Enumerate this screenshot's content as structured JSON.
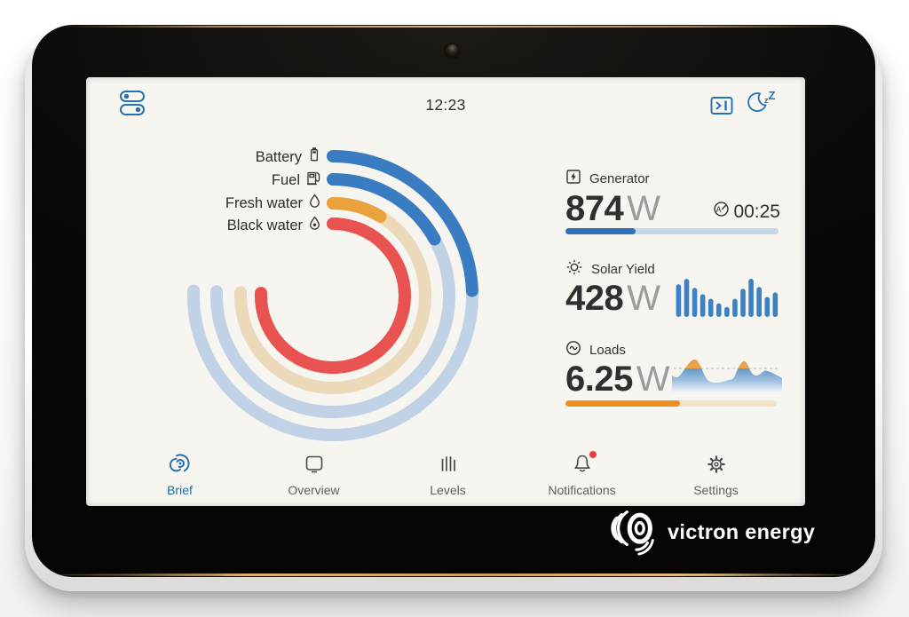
{
  "status_bar": {
    "time": "12:23",
    "icons": [
      "toggles-icon",
      "remote-console-icon",
      "display-sleep-icon"
    ],
    "accent_color": "#2471b5"
  },
  "chart_data": [
    {
      "type": "gauge-arcs",
      "name": "tank-gauge",
      "sweep_deg": 272,
      "stroke": 14,
      "rings": [
        {
          "label": "Battery",
          "icon": "battery-icon",
          "percent": 32,
          "fill_deg": 88,
          "fill": "#3a7cc2",
          "track": "#c2d2e6",
          "radius": 157
        },
        {
          "label": "Fuel",
          "icon": "fuel-pump-icon",
          "percent": 22,
          "fill_deg": 61,
          "fill": "#3a7cc2",
          "track": "#c2d2e6",
          "radius": 131
        },
        {
          "label": "Fresh water",
          "icon": "droplet-icon",
          "percent": 11,
          "fill_deg": 31,
          "fill": "#eaa23c",
          "track": "#ecd9ba",
          "radius": 104
        },
        {
          "label": "Black water",
          "icon": "droplet-dark-icon",
          "percent": 100,
          "fill_deg": 272,
          "fill": "#e85250",
          "track": "#f2c3bd",
          "radius": 81
        }
      ]
    },
    {
      "type": "bar",
      "name": "solar-history",
      "values": [
        36,
        42,
        32,
        25,
        20,
        15,
        11,
        20,
        31,
        42,
        33,
        22,
        27
      ],
      "ymax": 43,
      "color": "#3d80c4"
    },
    {
      "type": "area",
      "name": "loads-history",
      "x": [
        0,
        0.05,
        0.12,
        0.2,
        0.25,
        0.31,
        0.37,
        0.45,
        0.52,
        0.56,
        0.6,
        0.65,
        0.68,
        0.72,
        0.76,
        0.8,
        0.84,
        0.88,
        0.94,
        1
      ],
      "v": [
        0.45,
        0.33,
        0.67,
        0.95,
        0.8,
        0.33,
        0.24,
        0.26,
        0.33,
        0.35,
        0.67,
        0.88,
        0.8,
        0.52,
        0.43,
        0.48,
        0.6,
        0.57,
        0.48,
        0.38
      ],
      "threshold": 0.65,
      "area_top_color": "#3e77ae",
      "area_bottom_color": "#e9f0f7",
      "above_color": "#eda045",
      "threshold_color": "#a9a294"
    }
  ],
  "panels": {
    "generator": {
      "label": "Generator",
      "icon": "generator-icon",
      "value": "874",
      "unit": "W",
      "timer": "00:25",
      "timer_icon": "auto-run-icon",
      "progress_pct": 33,
      "bar_fill": "#2f6fb7",
      "bar_track": "#c8d7e8"
    },
    "solar": {
      "label": "Solar Yield",
      "icon": "sun-icon",
      "value": "428",
      "unit": "W"
    },
    "loads": {
      "label": "Loads",
      "icon": "ac-loads-icon",
      "value": "6.25",
      "unit": "W",
      "progress_pct": 54,
      "bar_fill": "#ee8f20",
      "bar_track": "#f3e3c6"
    }
  },
  "tabs": [
    {
      "label": "Brief",
      "icon": "brief-swirl-icon",
      "active": true,
      "badge": false
    },
    {
      "label": "Overview",
      "icon": "overview-icon",
      "active": false,
      "badge": false
    },
    {
      "label": "Levels",
      "icon": "levels-icon",
      "active": false,
      "badge": false
    },
    {
      "label": "Notifications",
      "icon": "bell-icon",
      "active": false,
      "badge": true
    },
    {
      "label": "Settings",
      "icon": "gear-icon",
      "active": false,
      "badge": false
    }
  ],
  "branding": {
    "logo_text": "victron energy"
  }
}
